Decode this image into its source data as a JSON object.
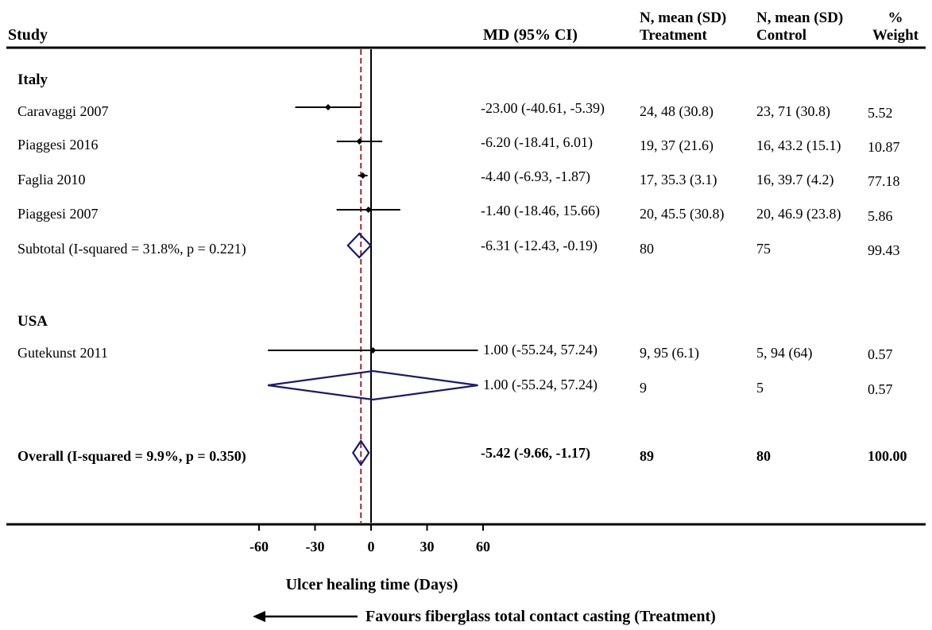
{
  "headers": {
    "study": "Study",
    "md": "MD (95% CI)",
    "treatment_line1": "N, mean (SD)",
    "treatment_line2": "Treatment",
    "control_line1": "N, mean (SD)",
    "control_line2": "Control",
    "weight_line1": "%",
    "weight_line2": "Weight"
  },
  "groups": {
    "italy": "Italy",
    "usa": "USA"
  },
  "rows": [
    {
      "label": "Caravaggi 2007",
      "md": "-23.00 (-40.61, -5.39)",
      "treatment": "24, 48 (30.8)",
      "control": "23, 71 (30.8)",
      "weight": "5.52"
    },
    {
      "label": "Piaggesi 2016",
      "md": "-6.20 (-18.41, 6.01)",
      "treatment": "19, 37 (21.6)",
      "control": "16, 43.2 (15.1)",
      "weight": "10.87"
    },
    {
      "label": "Faglia 2010",
      "md": "-4.40 (-6.93, -1.87)",
      "treatment": "17, 35.3 (3.1)",
      "control": "16, 39.7 (4.2)",
      "weight": "77.18"
    },
    {
      "label": "Piaggesi 2007",
      "md": "-1.40 (-18.46, 15.66)",
      "treatment": "20, 45.5 (30.8)",
      "control": "20, 46.9 (23.8)",
      "weight": "5.86"
    },
    {
      "label": "Subtotal (I-squared = 31.8%, p = 0.221)",
      "md": "-6.31 (-12.43, -0.19)",
      "treatment": "80",
      "control": "75",
      "weight": "99.43"
    },
    {
      "label": "Gutekunst 2011",
      "md": "1.00 (-55.24, 57.24)",
      "treatment": "9, 95 (6.1)",
      "control": "5, 94 (64)",
      "weight": "0.57"
    },
    {
      "label": "",
      "md": "1.00 (-55.24, 57.24)",
      "treatment": "9",
      "control": "5",
      "weight": "0.57"
    },
    {
      "label": "Overall (I-squared = 9.9%, p = 0.350)",
      "md": "-5.42 (-9.66, -1.17)",
      "treatment": "89",
      "control": "80",
      "weight": "100.00"
    }
  ],
  "axis": {
    "xlabel": "Ulcer healing time (Days)",
    "favours": "Favours fiberglass total contact casting (Treatment)"
  },
  "colors": {
    "diamond": "#1a1a6e",
    "pooled_line": "#a0282d",
    "ink": "#000000"
  },
  "chart_data": {
    "type": "forest",
    "xlim": [
      -60,
      60
    ],
    "xticks": [
      -60,
      -30,
      0,
      30,
      60
    ],
    "null_line": 0,
    "overall_line": -5.42,
    "studies": [
      {
        "name": "Caravaggi 2007",
        "group": "Italy",
        "md": -23.0,
        "lo": -40.61,
        "hi": -5.39,
        "weight": 5.52
      },
      {
        "name": "Piaggesi 2016",
        "group": "Italy",
        "md": -6.2,
        "lo": -18.41,
        "hi": 6.01,
        "weight": 10.87
      },
      {
        "name": "Faglia 2010",
        "group": "Italy",
        "md": -4.4,
        "lo": -6.93,
        "hi": -1.87,
        "weight": 77.18
      },
      {
        "name": "Piaggesi 2007",
        "group": "Italy",
        "md": -1.4,
        "lo": -18.46,
        "hi": 15.66,
        "weight": 5.86
      },
      {
        "name": "Gutekunst 2011",
        "group": "USA",
        "md": 1.0,
        "lo": -55.24,
        "hi": 57.24,
        "weight": 0.57
      }
    ],
    "pooled": [
      {
        "name": "Subtotal Italy",
        "md": -6.31,
        "lo": -12.43,
        "hi": -0.19
      },
      {
        "name": "Subtotal USA",
        "md": 1.0,
        "lo": -55.24,
        "hi": 57.24
      },
      {
        "name": "Overall",
        "md": -5.42,
        "lo": -9.66,
        "hi": -1.17
      }
    ]
  }
}
